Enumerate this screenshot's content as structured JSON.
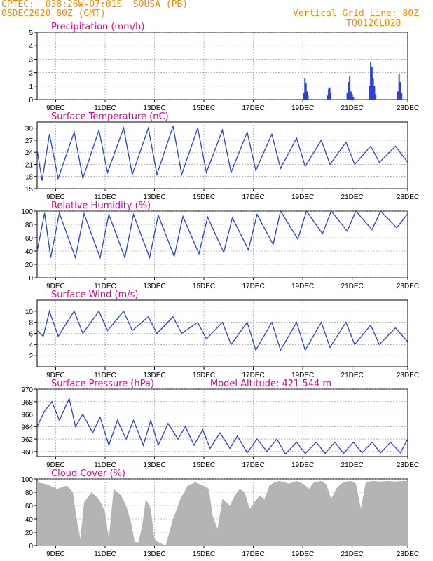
{
  "header": {
    "line1_left": "CPTEC:  038:26W-07:01S  SOUSA (PB)",
    "line2_left": "08DEC2020 80Z (GMT)",
    "line1_right": "Vertical Grid Line: 80Z",
    "line2_right": "TQ0126L028"
  },
  "colors": {
    "header": "#f08a00",
    "title": "#e0008c",
    "line": "#2a3fd8",
    "cloud": "#b4b4b4",
    "grid": "#888888"
  },
  "x_axis": {
    "labels": [
      "9DEC",
      "11DEC",
      "13DEC",
      "15DEC",
      "17DEC",
      "19DEC",
      "21DEC",
      "23DEC"
    ]
  },
  "chart_data": [
    {
      "type": "bar",
      "title": "Precipitation (mm/h)",
      "ylim": [
        0,
        5
      ],
      "yticks": [
        "0",
        "1",
        "2",
        "3",
        "4",
        "5"
      ],
      "x_start": 0,
      "x_end": 15,
      "series": [
        {
          "values": [
            [
              10.8,
              0.5
            ],
            [
              10.84,
              1.6
            ],
            [
              10.88,
              1.2
            ],
            [
              10.92,
              0.6
            ],
            [
              10.96,
              0.3
            ],
            [
              11.75,
              0.3
            ],
            [
              11.8,
              0.8
            ],
            [
              11.84,
              0.9
            ],
            [
              11.88,
              0.5
            ],
            [
              12.55,
              0.5
            ],
            [
              12.6,
              1.3
            ],
            [
              12.65,
              1.7
            ],
            [
              12.7,
              0.6
            ],
            [
              12.75,
              0.4
            ],
            [
              12.8,
              0.2
            ],
            [
              13.45,
              1.0
            ],
            [
              13.5,
              2.8
            ],
            [
              13.55,
              2.4
            ],
            [
              13.6,
              1.6
            ],
            [
              13.65,
              1.0
            ],
            [
              13.7,
              0.4
            ],
            [
              14.6,
              0.6
            ],
            [
              14.65,
              1.9
            ],
            [
              14.7,
              1.3
            ],
            [
              14.75,
              0.5
            ]
          ]
        }
      ]
    },
    {
      "type": "line",
      "title": "Surface Temperature (nC)",
      "ylim": [
        15,
        31.5
      ],
      "yticks": [
        "15",
        "18",
        "21",
        "24",
        "27",
        "30"
      ],
      "x_start": 0,
      "x_end": 15,
      "series": [
        {
          "values": [
            [
              0,
              24.5
            ],
            [
              0.2,
              17
            ],
            [
              0.5,
              28.5
            ],
            [
              0.85,
              17.5
            ],
            [
              1.5,
              29
            ],
            [
              1.85,
              17.5
            ],
            [
              2.5,
              29.5
            ],
            [
              2.85,
              19
            ],
            [
              3.5,
              30
            ],
            [
              3.85,
              18.5
            ],
            [
              4.5,
              30
            ],
            [
              4.85,
              18.5
            ],
            [
              5.5,
              30.5
            ],
            [
              5.85,
              18.5
            ],
            [
              6.5,
              30
            ],
            [
              6.85,
              19
            ],
            [
              7.5,
              29.5
            ],
            [
              7.85,
              19
            ],
            [
              8.5,
              29
            ],
            [
              8.85,
              19.5
            ],
            [
              9.5,
              28.5
            ],
            [
              9.85,
              20
            ],
            [
              10.5,
              27.5
            ],
            [
              10.85,
              20.5
            ],
            [
              11.5,
              27
            ],
            [
              11.85,
              21
            ],
            [
              12.5,
              26.5
            ],
            [
              12.85,
              21
            ],
            [
              13.5,
              25.5
            ],
            [
              13.85,
              21.5
            ],
            [
              14.5,
              25.5
            ],
            [
              15,
              21.5
            ]
          ]
        }
      ]
    },
    {
      "type": "line",
      "title": "Relative Humidity (%)",
      "ylim": [
        0,
        100
      ],
      "yticks": [
        "0",
        "20",
        "40",
        "60",
        "80",
        "100"
      ],
      "x_start": 0,
      "x_end": 15,
      "series": [
        {
          "values": [
            [
              0,
              40
            ],
            [
              0.3,
              97
            ],
            [
              0.55,
              30
            ],
            [
              0.9,
              97
            ],
            [
              1.55,
              30
            ],
            [
              1.9,
              96
            ],
            [
              2.55,
              30
            ],
            [
              2.9,
              95
            ],
            [
              3.55,
              30
            ],
            [
              3.9,
              95
            ],
            [
              4.55,
              30
            ],
            [
              4.9,
              94
            ],
            [
              5.55,
              32
            ],
            [
              5.9,
              92
            ],
            [
              6.55,
              36
            ],
            [
              6.9,
              91
            ],
            [
              7.55,
              38
            ],
            [
              7.9,
              90
            ],
            [
              8.55,
              42
            ],
            [
              8.9,
              95
            ],
            [
              9.55,
              50
            ],
            [
              9.85,
              100
            ],
            [
              10.55,
              58
            ],
            [
              10.9,
              100
            ],
            [
              11.55,
              66
            ],
            [
              11.9,
              100
            ],
            [
              12.55,
              70
            ],
            [
              12.9,
              100
            ],
            [
              13.55,
              72
            ],
            [
              13.9,
              100
            ],
            [
              14.55,
              75
            ],
            [
              15,
              96
            ]
          ]
        }
      ]
    },
    {
      "type": "line",
      "title": "Surface Wind (m/s)",
      "ylim": [
        0,
        12
      ],
      "yticks": [
        "2",
        "4",
        "6",
        "8",
        "10"
      ],
      "x_start": 0,
      "x_end": 15,
      "series": [
        {
          "values": [
            [
              0,
              6.5
            ],
            [
              0.25,
              5.5
            ],
            [
              0.5,
              10
            ],
            [
              0.85,
              5.5
            ],
            [
              1.5,
              10
            ],
            [
              1.85,
              6
            ],
            [
              2.5,
              10
            ],
            [
              2.85,
              6.5
            ],
            [
              3.5,
              10
            ],
            [
              3.85,
              6.5
            ],
            [
              4.5,
              9
            ],
            [
              4.85,
              6
            ],
            [
              5.5,
              9
            ],
            [
              5.85,
              6
            ],
            [
              6.5,
              8
            ],
            [
              6.85,
              5
            ],
            [
              7.5,
              8
            ],
            [
              7.85,
              4
            ],
            [
              8.5,
              8
            ],
            [
              8.85,
              3
            ],
            [
              9.5,
              8
            ],
            [
              9.85,
              3
            ],
            [
              10.5,
              8
            ],
            [
              10.85,
              3
            ],
            [
              11.5,
              8
            ],
            [
              11.85,
              3.5
            ],
            [
              12.5,
              8
            ],
            [
              12.85,
              4
            ],
            [
              13.5,
              7.5
            ],
            [
              13.85,
              4
            ],
            [
              14.5,
              7
            ],
            [
              15,
              4.5
            ]
          ]
        }
      ]
    },
    {
      "type": "line",
      "title": "Surface Pressure (hPa)",
      "subtitle": "Model Altitude: 421.544 m",
      "ylim": [
        959.2,
        970
      ],
      "yticks": [
        "960",
        "962",
        "964",
        "966",
        "968",
        "970"
      ],
      "x_start": 0,
      "x_end": 15,
      "series": [
        {
          "values": [
            [
              0,
              964
            ],
            [
              0.3,
              966.5
            ],
            [
              0.6,
              968
            ],
            [
              0.9,
              965
            ],
            [
              1.3,
              968.5
            ],
            [
              1.55,
              964
            ],
            [
              1.85,
              966
            ],
            [
              2.25,
              963
            ],
            [
              2.55,
              965.5
            ],
            [
              2.9,
              961
            ],
            [
              3.25,
              965
            ],
            [
              3.6,
              962
            ],
            [
              3.9,
              965
            ],
            [
              4.3,
              961
            ],
            [
              4.6,
              965
            ],
            [
              4.9,
              961
            ],
            [
              5.3,
              964.5
            ],
            [
              5.7,
              962
            ],
            [
              6,
              964
            ],
            [
              6.35,
              961
            ],
            [
              6.7,
              963.5
            ],
            [
              7.0,
              960.5
            ],
            [
              7.4,
              963
            ],
            [
              7.8,
              960.5
            ],
            [
              8.1,
              962.5
            ],
            [
              8.5,
              959.8
            ],
            [
              8.9,
              962
            ],
            [
              9.3,
              960
            ],
            [
              9.7,
              962
            ],
            [
              10.05,
              959.6
            ],
            [
              10.5,
              961.5
            ],
            [
              10.85,
              959.7
            ],
            [
              11.3,
              961.5
            ],
            [
              11.65,
              959.7
            ],
            [
              12.05,
              961.5
            ],
            [
              12.4,
              959.7
            ],
            [
              12.8,
              961.5
            ],
            [
              13.15,
              959.8
            ],
            [
              13.55,
              961.5
            ],
            [
              13.9,
              959.8
            ],
            [
              14.3,
              961.5
            ],
            [
              14.7,
              959.8
            ],
            [
              15,
              962
            ]
          ]
        }
      ]
    },
    {
      "type": "area",
      "title": "Cloud Cover (%)",
      "ylim": [
        0,
        100
      ],
      "yticks": [
        "0",
        "20",
        "40",
        "60",
        "80",
        "100"
      ],
      "x_start": 0,
      "x_end": 15,
      "series": [
        {
          "values": [
            [
              0,
              95
            ],
            [
              0.4,
              92
            ],
            [
              0.8,
              85
            ],
            [
              1.2,
              90
            ],
            [
              1.45,
              80
            ],
            [
              1.6,
              40
            ],
            [
              1.75,
              10
            ],
            [
              1.9,
              65
            ],
            [
              2.2,
              80
            ],
            [
              2.5,
              70
            ],
            [
              2.75,
              50
            ],
            [
              2.9,
              10
            ],
            [
              3.1,
              85
            ],
            [
              3.4,
              75
            ],
            [
              3.6,
              60
            ],
            [
              3.8,
              35
            ],
            [
              3.95,
              5
            ],
            [
              4.1,
              5
            ],
            [
              4.25,
              30
            ],
            [
              4.4,
              70
            ],
            [
              4.6,
              55
            ],
            [
              4.75,
              10
            ],
            [
              4.9,
              5
            ],
            [
              5.2,
              0
            ],
            [
              5.5,
              40
            ],
            [
              5.8,
              70
            ],
            [
              6.1,
              90
            ],
            [
              6.4,
              95
            ],
            [
              6.7,
              90
            ],
            [
              6.95,
              85
            ],
            [
              7.1,
              45
            ],
            [
              7.3,
              25
            ],
            [
              7.5,
              70
            ],
            [
              7.8,
              60
            ],
            [
              8.0,
              75
            ],
            [
              8.2,
              85
            ],
            [
              8.4,
              80
            ],
            [
              8.6,
              55
            ],
            [
              8.8,
              65
            ],
            [
              9.0,
              75
            ],
            [
              9.2,
              70
            ],
            [
              9.4,
              90
            ],
            [
              9.6,
              95
            ],
            [
              9.8,
              97
            ],
            [
              10.0,
              95
            ],
            [
              10.2,
              93
            ],
            [
              10.5,
              97
            ],
            [
              10.8,
              92
            ],
            [
              11.0,
              85
            ],
            [
              11.2,
              95
            ],
            [
              11.5,
              97
            ],
            [
              11.7,
              92
            ],
            [
              11.9,
              70
            ],
            [
              12.1,
              85
            ],
            [
              12.3,
              93
            ],
            [
              12.5,
              96
            ],
            [
              12.7,
              97
            ],
            [
              12.9,
              93
            ],
            [
              13.1,
              55
            ],
            [
              13.3,
              95
            ],
            [
              13.6,
              97
            ],
            [
              13.9,
              96
            ],
            [
              14.2,
              97
            ],
            [
              14.5,
              96
            ],
            [
              14.8,
              97
            ],
            [
              15,
              97
            ]
          ]
        }
      ]
    }
  ]
}
